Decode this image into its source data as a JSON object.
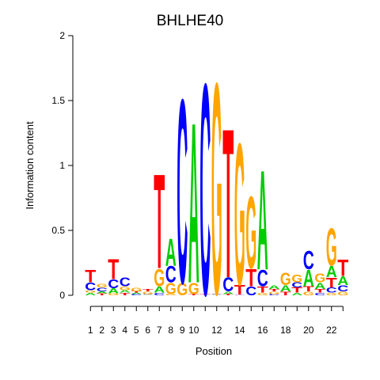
{
  "chart_data": {
    "type": "sequence-logo",
    "title": "BHLHE40",
    "xlabel": "Position",
    "ylabel": "Information content",
    "ylim": [
      0,
      2
    ],
    "yticks": [
      "0",
      "0.5",
      "1",
      "1.5",
      "2"
    ],
    "xticks": [
      "1",
      "2",
      "3",
      "4",
      "5",
      "6",
      "7",
      "8",
      "9",
      "10",
      "11",
      "12",
      "13",
      "14",
      "15",
      "16",
      "17",
      "18",
      "19",
      "20",
      "21",
      "22",
      "23"
    ],
    "xtick_visible": [
      "1",
      "2",
      "3",
      "4",
      "5",
      "6",
      "7",
      "8",
      "9",
      "10",
      "12",
      "14",
      "16",
      "18",
      "20",
      "22"
    ],
    "colors": {
      "A": "#00cc00",
      "C": "#0000ff",
      "G": "#ffa500",
      "T": "#ff0000"
    },
    "positions": [
      [
        [
          "A",
          0.02
        ],
        [
          "G",
          0.02
        ],
        [
          "C",
          0.06
        ],
        [
          "T",
          0.1
        ]
      ],
      [
        [
          "T",
          0.015
        ],
        [
          "A",
          0.015
        ],
        [
          "C",
          0.03
        ],
        [
          "G",
          0.03
        ]
      ],
      [
        [
          "G",
          0.015
        ],
        [
          "A",
          0.04
        ],
        [
          "C",
          0.07
        ],
        [
          "T",
          0.16
        ]
      ],
      [
        [
          "T",
          0.02
        ],
        [
          "A",
          0.02
        ],
        [
          "G",
          0.03
        ],
        [
          "C",
          0.07
        ]
      ],
      [
        [
          "C",
          0.01
        ],
        [
          "A",
          0.01
        ],
        [
          "T",
          0.01
        ],
        [
          "G",
          0.03
        ]
      ],
      [
        [
          "A",
          0.005
        ],
        [
          "C",
          0.005
        ],
        [
          "G",
          0.02
        ],
        [
          "T",
          0.02
        ]
      ],
      [
        [
          "C",
          0.02
        ],
        [
          "A",
          0.05
        ],
        [
          "G",
          0.14
        ],
        [
          "T",
          0.76
        ]
      ],
      [
        [
          "G",
          0.01
        ],
        [
          "G",
          0.09
        ],
        [
          "C",
          0.13
        ],
        [
          "A",
          0.22
        ]
      ],
      [
        [
          "G",
          0.1
        ],
        [
          "C",
          1.48
        ]
      ],
      [
        [
          "T",
          0.01
        ],
        [
          "G",
          0.09
        ],
        [
          "A",
          1.29
        ]
      ],
      [
        [
          "T",
          0.01
        ],
        [
          "C",
          1.7
        ]
      ],
      [
        [
          "A",
          0.005
        ],
        [
          "C",
          0.005
        ],
        [
          "T",
          0.005
        ],
        [
          "G",
          1.7
        ]
      ],
      [
        [
          "T",
          0.01
        ],
        [
          "A",
          0.02
        ],
        [
          "C",
          0.11
        ],
        [
          "T",
          1.2
        ]
      ],
      [
        [
          "C",
          0.005
        ],
        [
          "T",
          0.08
        ],
        [
          "G",
          1.14
        ]
      ],
      [
        [
          "C",
          0.07
        ],
        [
          "T",
          0.14
        ],
        [
          "G",
          0.58
        ]
      ],
      [
        [
          "G",
          0.02
        ],
        [
          "T",
          0.05
        ],
        [
          "C",
          0.13
        ],
        [
          "A",
          0.8
        ]
      ],
      [
        [
          "C",
          0.01
        ],
        [
          "G",
          0.02
        ],
        [
          "T",
          0.02
        ],
        [
          "A",
          0.03
        ]
      ],
      [
        [
          "T",
          0.03
        ],
        [
          "A",
          0.05
        ],
        [
          "G",
          0.1
        ]
      ],
      [
        [
          "A",
          0.02
        ],
        [
          "T",
          0.04
        ],
        [
          "C",
          0.04
        ],
        [
          "G",
          0.06
        ]
      ],
      [
        [
          "G",
          0.03
        ],
        [
          "T",
          0.04
        ],
        [
          "A",
          0.13
        ],
        [
          "C",
          0.15
        ]
      ],
      [
        [
          "C",
          0.02
        ],
        [
          "T",
          0.03
        ],
        [
          "A",
          0.05
        ],
        [
          "G",
          0.07
        ]
      ],
      [
        [
          "G",
          0.02
        ],
        [
          "C",
          0.04
        ],
        [
          "T",
          0.08
        ],
        [
          "A",
          0.09
        ],
        [
          "G",
          0.3
        ]
      ],
      [
        [
          "G",
          0.03
        ],
        [
          "C",
          0.05
        ],
        [
          "A",
          0.07
        ],
        [
          "T",
          0.13
        ]
      ]
    ]
  }
}
